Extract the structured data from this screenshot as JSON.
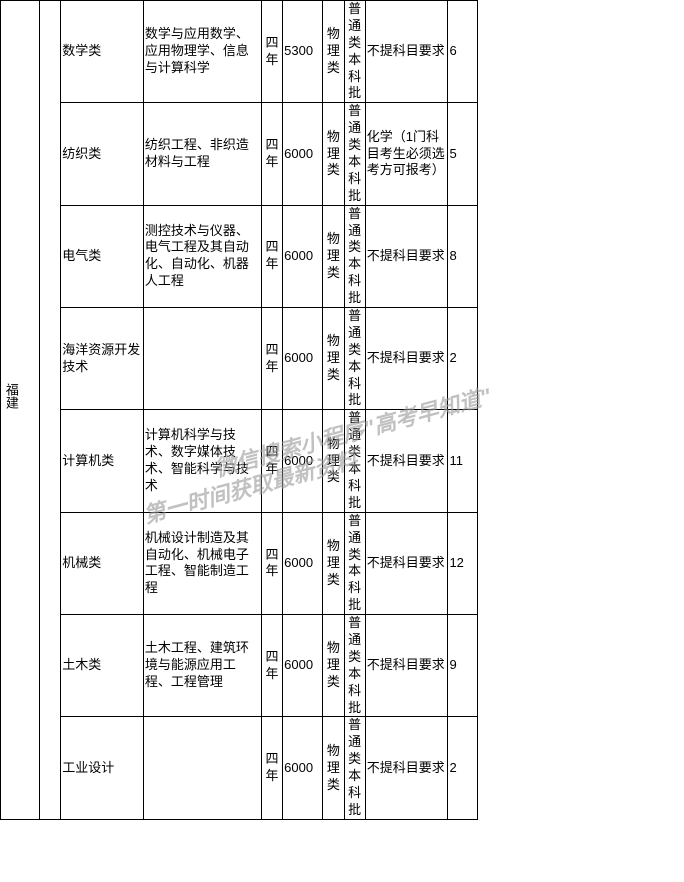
{
  "table": {
    "border_color": "#000000",
    "background_color": "#ffffff",
    "font_size": 13,
    "region_label": "福建",
    "rows": [
      {
        "major": "数学类",
        "detail": "数学与应用数学、应用物理学、信息与计算科学",
        "duration": "四年",
        "fee": "5300",
        "type": "物理类",
        "batch": "普通类本科批",
        "req": "不提科目要求",
        "num": "6"
      },
      {
        "major": "纺织类",
        "detail": "纺织工程、非织造材料与工程",
        "duration": "四年",
        "fee": "6000",
        "type": "物理类",
        "batch": "普通类本科批",
        "req": "化学（1门科目考生必须选考方可报考）",
        "num": "5"
      },
      {
        "major": "电气类",
        "detail": "测控技术与仪器、电气工程及其自动化、自动化、机器人工程",
        "duration": "四年",
        "fee": "6000",
        "type": "物理类",
        "batch": "普通类本科批",
        "req": "不提科目要求",
        "num": "8"
      },
      {
        "major": "海洋资源开发技术",
        "detail": "",
        "duration": "四年",
        "fee": "6000",
        "type": "物理类",
        "batch": "普通类本科批",
        "req": "不提科目要求",
        "num": "2"
      },
      {
        "major": "计算机类",
        "detail": "计算机科学与技术、数字媒体技术、智能科学与技术",
        "duration": "四年",
        "fee": "6000",
        "type": "物理类",
        "batch": "普通类本科批",
        "req": "不提科目要求",
        "num": "11"
      },
      {
        "major": "机械类",
        "detail": "机械设计制造及其自动化、机械电子工程、智能制造工程",
        "duration": "四年",
        "fee": "6000",
        "type": "物理类",
        "batch": "普通类本科批",
        "req": "不提科目要求",
        "num": "12"
      },
      {
        "major": "土木类",
        "detail": "土木工程、建筑环境与能源应用工程、工程管理",
        "duration": "四年",
        "fee": "6000",
        "type": "物理类",
        "batch": "普通类本科批",
        "req": "不提科目要求",
        "num": "9"
      },
      {
        "major": "工业设计",
        "detail": "",
        "duration": "四年",
        "fee": "6000",
        "type": "物理类",
        "batch": "普通类本科批",
        "req": "不提科目要求",
        "num": "2"
      }
    ]
  },
  "watermark": {
    "line1": "微信搜索小程序\"高考早知道\"",
    "line2": "第一时间获取最新资料",
    "color": "#999999",
    "rotation": -15,
    "font_size": 22,
    "opacity": 0.6
  }
}
